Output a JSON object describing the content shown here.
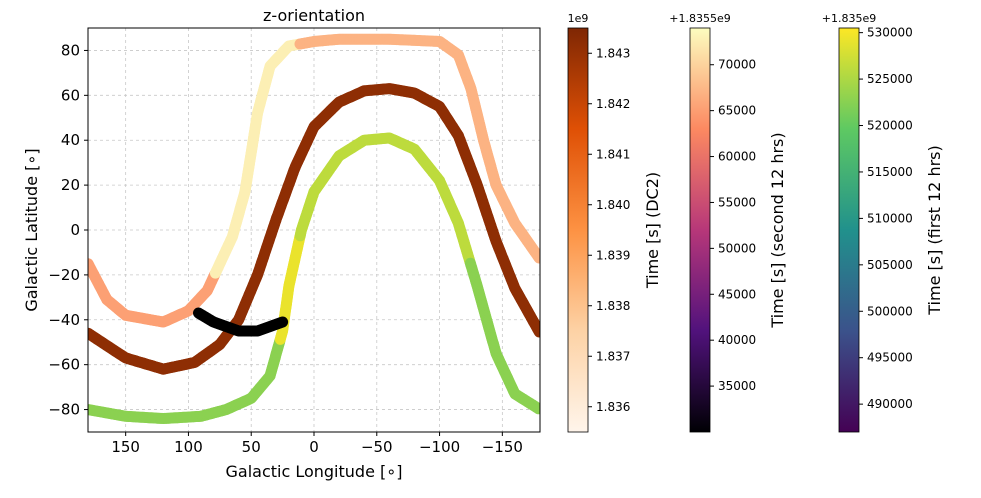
{
  "chart_data": {
    "type": "scatter",
    "title": "z-orientation",
    "xlabel": "Galactic Longitude [∘]",
    "ylabel": "Galactic Latitude [∘]",
    "xlim": [
      180,
      -180
    ],
    "ylim": [
      -90,
      90
    ],
    "xticks": [
      150,
      100,
      50,
      0,
      -50,
      -100,
      -150
    ],
    "xtick_labels": [
      "150",
      "100",
      "50",
      "0",
      "−50",
      "−100",
      "−150"
    ],
    "yticks": [
      80,
      60,
      40,
      20,
      0,
      -20,
      -40,
      -60,
      -80
    ],
    "ytick_labels": [
      "80",
      "60",
      "40",
      "20",
      "0",
      "−20",
      "−40",
      "−60",
      "−80"
    ],
    "grid": true,
    "series": [
      {
        "colormap": "Oranges",
        "points": [
          [
            180,
            -46
          ],
          [
            150,
            -57
          ],
          [
            120,
            -62
          ],
          [
            95,
            -59
          ],
          [
            75,
            -51
          ],
          [
            60,
            -40
          ],
          [
            45,
            -20
          ],
          [
            30,
            5
          ],
          [
            15,
            28
          ],
          [
            0,
            46
          ],
          [
            -20,
            57
          ],
          [
            -40,
            62
          ],
          [
            -60,
            63
          ],
          [
            -80,
            61
          ],
          [
            -100,
            55
          ],
          [
            -115,
            42
          ],
          [
            -130,
            20
          ],
          [
            -145,
            -5
          ],
          [
            -160,
            -26
          ],
          [
            -180,
            -46
          ]
        ]
      },
      {
        "colormap": "magma",
        "points": [
          [
            180,
            -15
          ],
          [
            165,
            -31
          ],
          [
            150,
            -38
          ],
          [
            120,
            -41
          ],
          [
            100,
            -36
          ],
          [
            90,
            -30
          ],
          [
            85,
            -27
          ],
          [
            75,
            -15
          ],
          [
            65,
            -3
          ],
          [
            55,
            17
          ],
          [
            45,
            52
          ],
          [
            35,
            73
          ],
          [
            20,
            82
          ],
          [
            0,
            84
          ],
          [
            -20,
            85
          ],
          [
            -60,
            85
          ],
          [
            -100,
            84
          ],
          [
            -115,
            78
          ],
          [
            -125,
            63
          ],
          [
            -135,
            40
          ],
          [
            -145,
            20
          ],
          [
            -160,
            3
          ],
          [
            -180,
            -13
          ]
        ]
      },
      {
        "colormap": "viridis",
        "points": [
          [
            180,
            -80
          ],
          [
            150,
            -83
          ],
          [
            120,
            -84
          ],
          [
            90,
            -83
          ],
          [
            70,
            -80
          ],
          [
            50,
            -75
          ],
          [
            35,
            -65
          ],
          [
            25,
            -45
          ],
          [
            20,
            -25
          ],
          [
            10,
            0
          ],
          [
            0,
            17
          ],
          [
            -20,
            33
          ],
          [
            -40,
            40
          ],
          [
            -60,
            41
          ],
          [
            -80,
            36
          ],
          [
            -100,
            22
          ],
          [
            -115,
            3
          ],
          [
            -130,
            -25
          ],
          [
            -145,
            -55
          ],
          [
            -160,
            -73
          ],
          [
            -180,
            -80
          ]
        ]
      },
      {
        "colormap": "black",
        "points": [
          [
            92,
            -37
          ],
          [
            80,
            -41
          ],
          [
            70,
            -43
          ],
          [
            60,
            -45
          ],
          [
            45,
            -45
          ],
          [
            35,
            -43
          ],
          [
            25,
            -41
          ]
        ]
      }
    ],
    "colorbars": [
      {
        "label": "Time [s] (DC2)",
        "offset": "1e9",
        "cmap": "Oranges",
        "ticks": [
          "1.843",
          "1.842",
          "1.841",
          "1.840",
          "1.839",
          "1.838",
          "1.837",
          "1.836"
        ],
        "range": [
          1.8355,
          1.8435
        ],
        "tick_values": [
          1.843,
          1.842,
          1.841,
          1.84,
          1.839,
          1.838,
          1.837,
          1.836
        ]
      },
      {
        "label": "Time [s] (second 12 hrs)",
        "offset": "+1.8355e9",
        "cmap": "magma",
        "ticks": [
          "70000",
          "65000",
          "60000",
          "55000",
          "50000",
          "45000",
          "40000",
          "35000"
        ],
        "range": [
          30000,
          74000
        ],
        "tick_values": [
          70000,
          65000,
          60000,
          55000,
          50000,
          45000,
          40000,
          35000
        ]
      },
      {
        "label": "Time [s] (first 12 hrs)",
        "offset": "+1.835e9",
        "cmap": "viridis",
        "ticks": [
          "530000",
          "525000",
          "520000",
          "515000",
          "510000",
          "505000",
          "500000",
          "495000",
          "490000"
        ],
        "range": [
          487000,
          530500
        ],
        "tick_values": [
          530000,
          525000,
          520000,
          515000,
          510000,
          505000,
          500000,
          495000,
          490000
        ]
      }
    ]
  }
}
